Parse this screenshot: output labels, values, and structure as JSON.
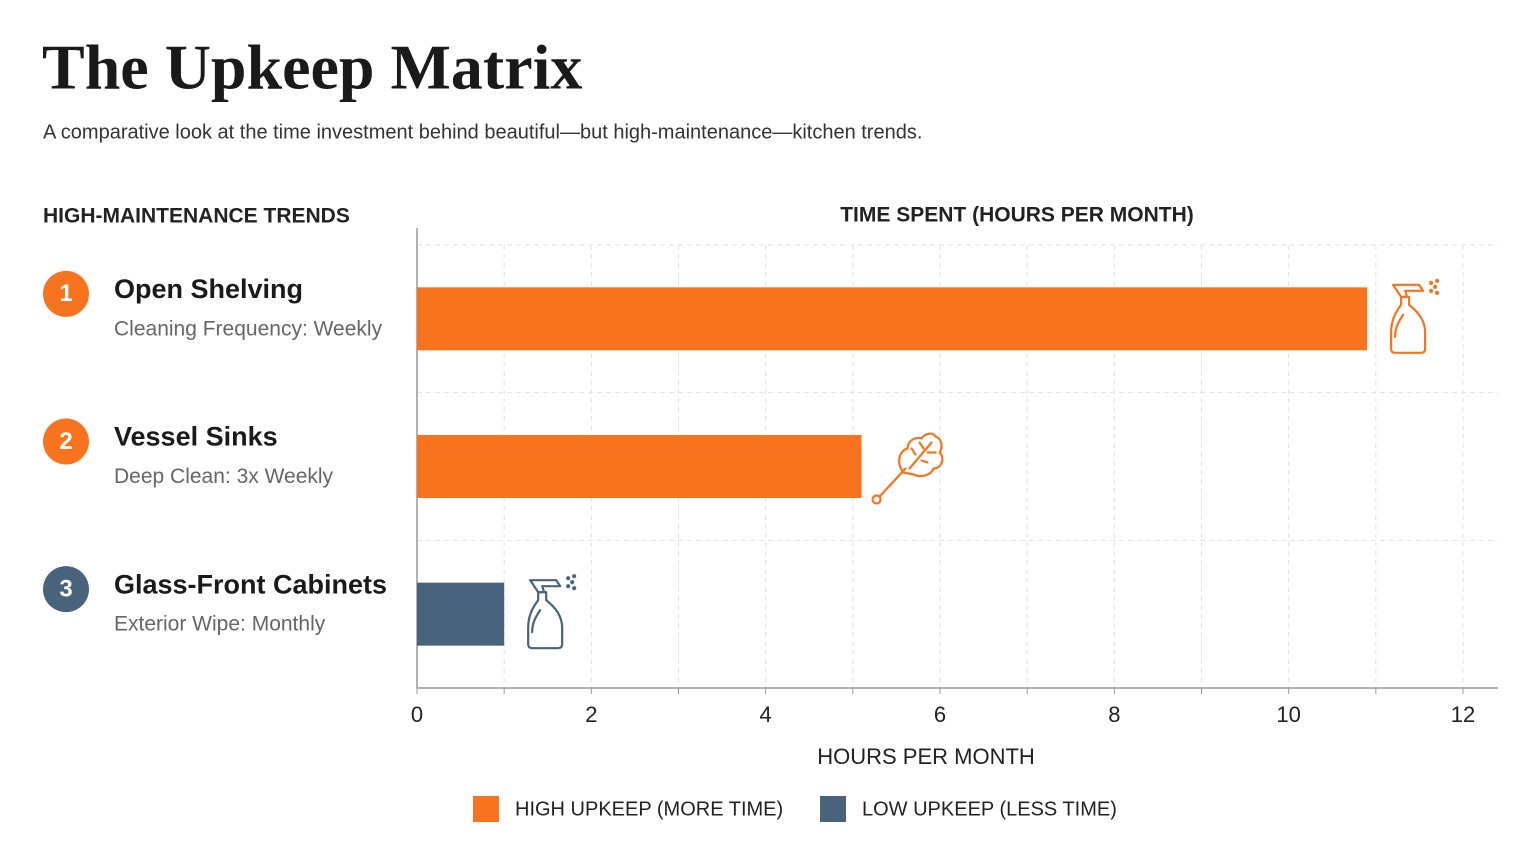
{
  "chart_data": {
    "type": "bar",
    "orientation": "horizontal",
    "title": "The Upkeep Matrix",
    "subtitle": "A comparative look at the time investment behind beautiful—but high-maintenance—kitchen trends.",
    "list_heading": "HIGH-MAINTENANCE TRENDS",
    "chart_heading": "TIME SPENT (HOURS PER MONTH)",
    "xlabel": "HOURS PER MONTH",
    "ranks": [
      "1",
      "2",
      "3"
    ],
    "categories": [
      "Open Shelving",
      "Vessel Sinks",
      "Glass-Front Cabinets"
    ],
    "details": [
      "Cleaning Frequency: Weekly",
      "Deep Clean: 3x Weekly",
      "Exterior Wipe: Monthly"
    ],
    "series": [
      {
        "name": "HIGH UPKEEP (MORE TIME)",
        "color": "#f7731e",
        "values": [
          10.9,
          5.1,
          null
        ]
      },
      {
        "name": "LOW UPKEEP (LESS TIME)",
        "color": "#4a637c",
        "values": [
          null,
          null,
          1.0
        ]
      }
    ],
    "xlim": [
      0,
      12.4
    ],
    "xticks": [
      0,
      2,
      4,
      6,
      8,
      10,
      12
    ],
    "xminor": [
      1,
      3,
      5,
      7,
      9,
      11
    ],
    "grid": true,
    "legend": "bottom"
  }
}
